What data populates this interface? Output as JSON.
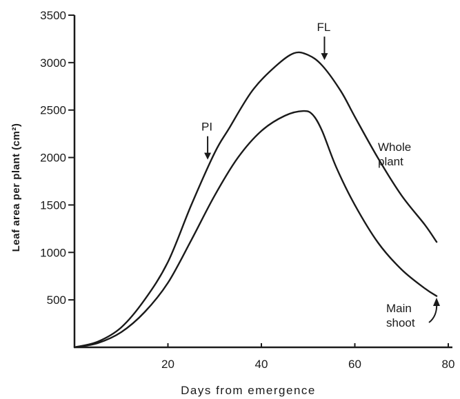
{
  "chart_data": {
    "type": "line",
    "title": "",
    "xlabel": "Days from emergence",
    "ylabel": "Leaf area per plant (cm²)",
    "xlim": [
      0,
      80
    ],
    "ylim": [
      0,
      3500
    ],
    "xticks": [
      20,
      40,
      60,
      80
    ],
    "yticks": [
      500,
      1000,
      1500,
      2000,
      2500,
      3000,
      3500
    ],
    "grid": false,
    "series": [
      {
        "name": "Whole plant",
        "x": [
          0,
          5,
          10,
          15,
          20,
          25,
          30,
          33,
          38,
          43,
          47,
          50,
          53,
          57,
          60,
          65,
          70,
          75,
          77.5
        ],
        "y": [
          0,
          60,
          210,
          500,
          900,
          1500,
          2050,
          2300,
          2700,
          2960,
          3100,
          3080,
          2970,
          2700,
          2430,
          1990,
          1600,
          1290,
          1110
        ]
      },
      {
        "name": "Main shoot",
        "x": [
          0,
          5,
          10,
          15,
          20,
          25,
          30,
          35,
          40,
          45,
          49,
          51,
          53,
          56,
          60,
          65,
          70,
          75,
          77.5
        ],
        "y": [
          0,
          45,
          160,
          370,
          680,
          1130,
          1600,
          2000,
          2280,
          2440,
          2490,
          2450,
          2280,
          1900,
          1500,
          1100,
          820,
          620,
          540
        ]
      }
    ],
    "annotations": [
      {
        "text": "PI",
        "x": 28.5,
        "y": 2050,
        "arrow": "down"
      },
      {
        "text": "FL",
        "x": 53.5,
        "y": 3100,
        "arrow": "down"
      }
    ]
  }
}
